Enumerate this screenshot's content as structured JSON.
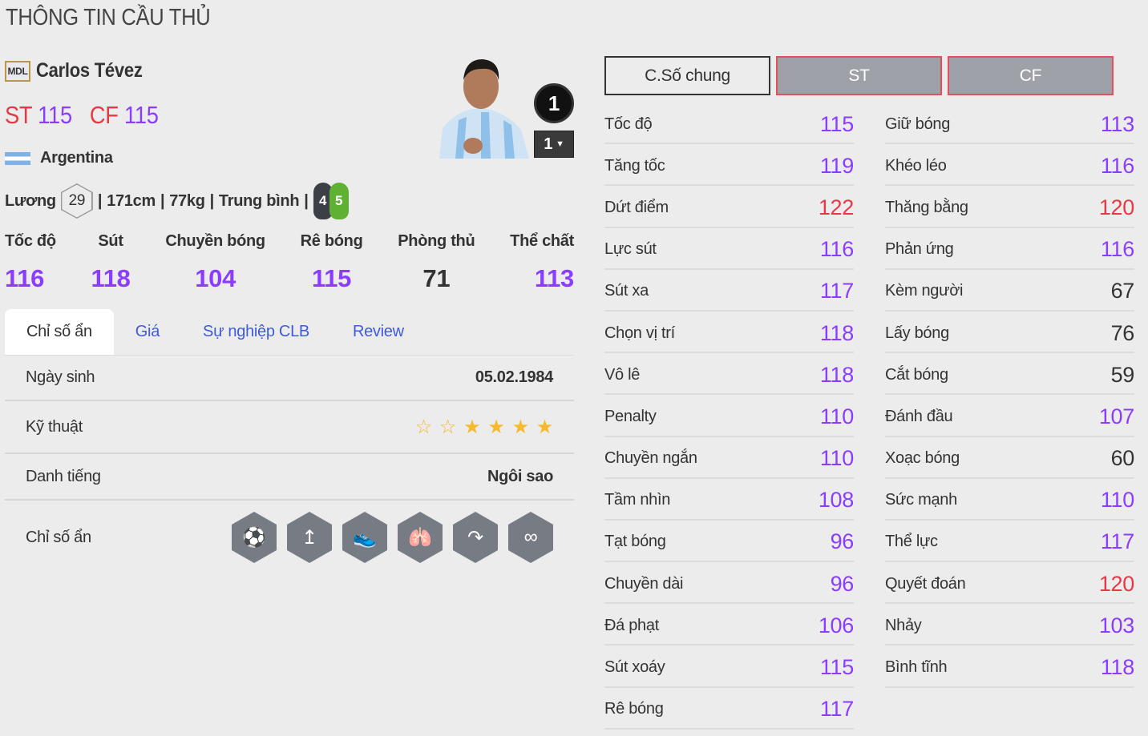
{
  "page_title": "THÔNG TIN CẦU THỦ",
  "player": {
    "season_badge": "MDL",
    "name": "Carlos Tévez",
    "positions": [
      {
        "pos": "ST",
        "ovr": "115"
      },
      {
        "pos": "CF",
        "ovr": "115"
      }
    ],
    "nation": "Argentina",
    "salary_label": "Lương",
    "salary": "29",
    "height": "171cm",
    "weight": "77kg",
    "body_type": "Trung bình",
    "weak_foot": "4",
    "strong_foot": "5",
    "level": "1",
    "level_select": "1"
  },
  "summary": [
    {
      "label": "Tốc độ",
      "value": "116",
      "tier": "pur"
    },
    {
      "label": "Sút",
      "value": "118",
      "tier": "pur"
    },
    {
      "label": "Chuyền bóng",
      "value": "104",
      "tier": "pur"
    },
    {
      "label": "Rê bóng",
      "value": "115",
      "tier": "pur"
    },
    {
      "label": "Phòng thủ",
      "value": "71",
      "tier": "dark"
    },
    {
      "label": "Thể chất",
      "value": "113",
      "tier": "pur"
    }
  ],
  "tabs": [
    "Chỉ số ẩn",
    "Giá",
    "Sự nghiệp CLB",
    "Review"
  ],
  "details": {
    "birth_label": "Ngày sinh",
    "birth": "05.02.1984",
    "skill_label": "Kỹ thuật",
    "skill_stars": 4,
    "skill_stars_max": 6,
    "rep_label": "Danh tiếng",
    "rep": "Ngôi sao",
    "hidden_label": "Chỉ số ẩn",
    "hidden_icons": [
      "goal-shot-icon",
      "long-range-icon",
      "boot-speed-icon",
      "lungs-stamina-icon",
      "curl-shot-icon",
      "dribble-route-icon"
    ]
  },
  "stat_buttons": [
    "C.Số chung",
    "ST",
    "CF"
  ],
  "stats_left": [
    {
      "l": "Tốc độ",
      "v": "115",
      "t": "pur"
    },
    {
      "l": "Tăng tốc",
      "v": "119",
      "t": "pur"
    },
    {
      "l": "Dứt điểm",
      "v": "122",
      "t": "red"
    },
    {
      "l": "Lực sút",
      "v": "116",
      "t": "pur"
    },
    {
      "l": "Sút xa",
      "v": "117",
      "t": "pur"
    },
    {
      "l": "Chọn vị trí",
      "v": "118",
      "t": "pur"
    },
    {
      "l": "Vô lê",
      "v": "118",
      "t": "pur"
    },
    {
      "l": "Penalty",
      "v": "110",
      "t": "pur"
    },
    {
      "l": "Chuyền ngắn",
      "v": "110",
      "t": "pur"
    },
    {
      "l": "Tầm nhìn",
      "v": "108",
      "t": "pur"
    },
    {
      "l": "Tạt bóng",
      "v": "96",
      "t": "pur"
    },
    {
      "l": "Chuyền dài",
      "v": "96",
      "t": "pur"
    },
    {
      "l": "Đá phạt",
      "v": "106",
      "t": "pur"
    },
    {
      "l": "Sút xoáy",
      "v": "115",
      "t": "pur"
    },
    {
      "l": "Rê bóng",
      "v": "117",
      "t": "pur"
    }
  ],
  "stats_right": [
    {
      "l": "Giữ bóng",
      "v": "113",
      "t": "pur"
    },
    {
      "l": "Khéo léo",
      "v": "116",
      "t": "pur"
    },
    {
      "l": "Thăng bằng",
      "v": "120",
      "t": "red"
    },
    {
      "l": "Phản ứng",
      "v": "116",
      "t": "pur"
    },
    {
      "l": "Kèm người",
      "v": "67",
      "t": "dark"
    },
    {
      "l": "Lấy bóng",
      "v": "76",
      "t": "dark"
    },
    {
      "l": "Cắt bóng",
      "v": "59",
      "t": "dark"
    },
    {
      "l": "Đánh đầu",
      "v": "107",
      "t": "pur"
    },
    {
      "l": "Xoạc bóng",
      "v": "60",
      "t": "dark"
    },
    {
      "l": "Sức mạnh",
      "v": "110",
      "t": "pur"
    },
    {
      "l": "Thể lực",
      "v": "117",
      "t": "pur"
    },
    {
      "l": "Quyết đoán",
      "v": "120",
      "t": "red"
    },
    {
      "l": "Nhảy",
      "v": "103",
      "t": "pur"
    },
    {
      "l": "Bình tĩnh",
      "v": "118",
      "t": "pur"
    }
  ],
  "colors": {
    "red": "#e53945",
    "purple": "#8b3dff",
    "blue": "#3f5bd9",
    "background": "#ececec"
  }
}
